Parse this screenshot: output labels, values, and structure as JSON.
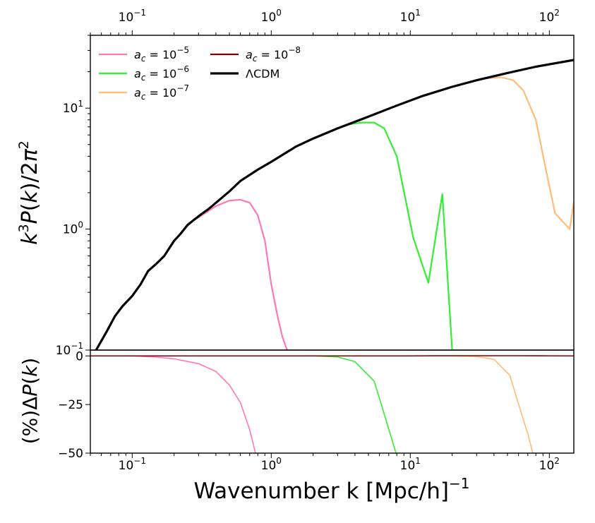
{
  "chart_data": [
    {
      "id": "top",
      "type": "line",
      "x_scale": "log",
      "y_scale": "log",
      "xlim": [
        0.05,
        150
      ],
      "ylim": [
        0.1,
        40
      ],
      "xlabel": "Wavenumber k [Mpc/h]",
      "xlabel_exponent": "−1",
      "ylabel": "k³P(k)/2π²",
      "x_ticks": [
        {
          "value": 0.1,
          "base": "10",
          "exp": "−1"
        },
        {
          "value": 1,
          "base": "10",
          "exp": "0"
        },
        {
          "value": 10,
          "base": "10",
          "exp": "1"
        },
        {
          "value": 100,
          "base": "10",
          "exp": "2"
        }
      ],
      "y_ticks": [
        {
          "value": 0.1,
          "base": "10",
          "exp": "−1"
        },
        {
          "value": 1,
          "base": "10",
          "exp": "0"
        },
        {
          "value": 10,
          "base": "10",
          "exp": "1"
        }
      ],
      "series": [
        {
          "name": "a_c = 10^-5",
          "label_base": "10",
          "label_exp": "−5",
          "color": "#ff77bb",
          "x": [
            0.25,
            0.3,
            0.35,
            0.4,
            0.5,
            0.6,
            0.7,
            0.8,
            0.9,
            1.0,
            1.1,
            1.2,
            1.3
          ],
          "y": [
            1.1,
            1.25,
            1.4,
            1.55,
            1.72,
            1.75,
            1.65,
            1.3,
            0.8,
            0.35,
            0.2,
            0.13,
            0.1
          ]
        },
        {
          "name": "a_c = 10^-6",
          "label_base": "10",
          "label_exp": "−6",
          "color": "#33ee33",
          "x": [
            3,
            3.5,
            4.5,
            5.5,
            6.5,
            8,
            10.5,
            13.5,
            17,
            20
          ],
          "y": [
            6.8,
            7.3,
            7.6,
            7.6,
            6.8,
            4.0,
            0.85,
            0.36,
            1.95,
            0.1
          ]
        },
        {
          "name": "a_c = 10^-7",
          "label_base": "10",
          "label_exp": "−7",
          "color": "#ffbb77",
          "x": [
            33,
            45,
            55,
            65,
            80,
            95,
            110,
            140,
            150
          ],
          "y": [
            17.5,
            18,
            17,
            14,
            8,
            3,
            1.35,
            1.0,
            1.65
          ]
        },
        {
          "name": "a_c = 10^-8",
          "label_base": "10",
          "label_exp": "−8",
          "color": "#800000",
          "x": [],
          "y": []
        },
        {
          "name": "ΛCDM",
          "color": "#000000",
          "x": [
            0.055,
            0.065,
            0.075,
            0.085,
            0.1,
            0.115,
            0.13,
            0.15,
            0.17,
            0.2,
            0.22,
            0.25,
            0.28,
            0.32,
            0.35,
            0.4,
            0.5,
            0.6,
            0.8,
            1.0,
            1.5,
            2,
            3,
            5,
            8,
            12,
            20,
            30,
            50,
            80,
            150
          ],
          "y": [
            0.1,
            0.14,
            0.19,
            0.23,
            0.28,
            0.35,
            0.45,
            0.52,
            0.6,
            0.8,
            0.9,
            1.08,
            1.2,
            1.35,
            1.45,
            1.65,
            2.05,
            2.5,
            3.1,
            3.6,
            4.8,
            5.6,
            6.8,
            8.5,
            10.5,
            12.5,
            15,
            17,
            19.5,
            22,
            25
          ]
        }
      ],
      "legend": {
        "placement": "upper-left",
        "symbol": "a",
        "subscript": "c",
        "lcdm_label": "ΛCDM"
      }
    },
    {
      "id": "bottom",
      "type": "line",
      "x_scale": "log",
      "y_scale": "linear",
      "xlim": [
        0.05,
        150
      ],
      "ylim": [
        -50,
        3
      ],
      "ylabel": "(%)ΔP(k)",
      "y_ticks": [
        {
          "value": 0,
          "label": "0"
        },
        {
          "value": -25,
          "label": "−25"
        },
        {
          "value": -50,
          "label": "−50"
        }
      ],
      "series": [
        {
          "name": "a_c = 10^-5",
          "color": "#ff77bb",
          "x": [
            0.05,
            0.1,
            0.15,
            0.2,
            0.3,
            0.4,
            0.5,
            0.6,
            0.7,
            0.77
          ],
          "y": [
            0,
            0,
            -0.6,
            -1.5,
            -4,
            -8,
            -15,
            -24,
            -38,
            -50
          ]
        },
        {
          "name": "a_c = 10^-6",
          "color": "#33ee33",
          "x": [
            0.9,
            2,
            3,
            4,
            5.5,
            6.5,
            7.3,
            7.9
          ],
          "y": [
            0,
            0,
            -0.5,
            -3,
            -13,
            -30,
            -42,
            -50
          ]
        },
        {
          "name": "a_c = 10^-7",
          "color": "#ffbb77",
          "x": [
            10,
            20,
            30,
            40,
            52,
            62,
            70,
            76
          ],
          "y": [
            0,
            0,
            -0.3,
            -1.8,
            -10,
            -28,
            -40,
            -50
          ]
        },
        {
          "name": "a_c = 10^-8",
          "color": "#800000",
          "x": [
            0.05,
            0.1,
            1,
            10,
            15,
            30,
            60,
            100,
            150
          ],
          "y": [
            0,
            0,
            0,
            0,
            0.1,
            0.1,
            0.1,
            0.05,
            0
          ]
        }
      ]
    }
  ]
}
